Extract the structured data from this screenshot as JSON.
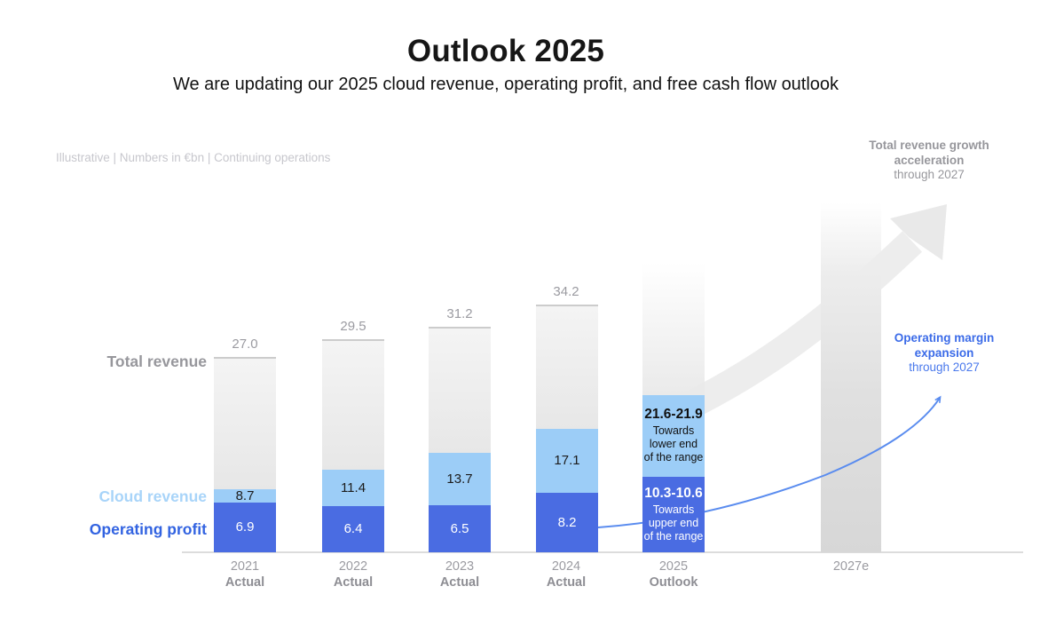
{
  "header": {
    "title": "Outlook 2025",
    "subtitle": "We are updating our 2025 cloud revenue, operating profit, and free cash flow outlook"
  },
  "meta_note": "Illustrative | Numbers in €bn | Continuing operations",
  "annotations": {
    "revenue_growth": {
      "bold": "Total revenue growth acceleration",
      "regular": "through 2027"
    },
    "margin_expansion": {
      "bold": "Operating margin expansion",
      "regular": "through 2027"
    }
  },
  "colors": {
    "operating_profit_bar": "#4a6ce2",
    "cloud_revenue_bar": "#9ccdf7",
    "total_revenue_bar": "#ededed",
    "forecast_bar": "#dcdcdc",
    "label_gray": "#97979c",
    "cloud_label": "#a8d4f9",
    "profit_label": "#3263e1",
    "annotation_blue": "#3b6be8",
    "arrow_blue": "#5a8cef",
    "swoosh_gray": "#ededed"
  },
  "chart_data": {
    "type": "bar",
    "unit": "€bn",
    "categories": [
      "2021",
      "2022",
      "2023",
      "2024",
      "2025",
      "2027e"
    ],
    "category_sublabels": [
      "Actual",
      "Actual",
      "Actual",
      "Actual",
      "Outlook",
      ""
    ],
    "series": [
      {
        "name": "Total revenue",
        "values": [
          27.0,
          29.5,
          31.2,
          34.2,
          null,
          null
        ]
      },
      {
        "name": "Cloud revenue",
        "values": [
          8.7,
          11.4,
          13.7,
          17.1,
          null,
          null
        ]
      },
      {
        "name": "Operating profit",
        "values": [
          6.9,
          6.4,
          6.5,
          8.2,
          null,
          null
        ]
      }
    ],
    "outlook_2025": {
      "cloud_revenue": {
        "range_label": "21.6-21.9",
        "low": 21.6,
        "high": 21.9,
        "note_lines": [
          "Towards",
          "lower end",
          "of the range"
        ]
      },
      "operating_profit": {
        "range_label": "10.3-10.6",
        "low": 10.3,
        "high": 10.6,
        "note_lines": [
          "Towards",
          "upper end",
          "of the range"
        ]
      }
    },
    "forecast_category": "2027e",
    "ylim": [
      0,
      40
    ],
    "grid": false,
    "legend_position": "left"
  }
}
